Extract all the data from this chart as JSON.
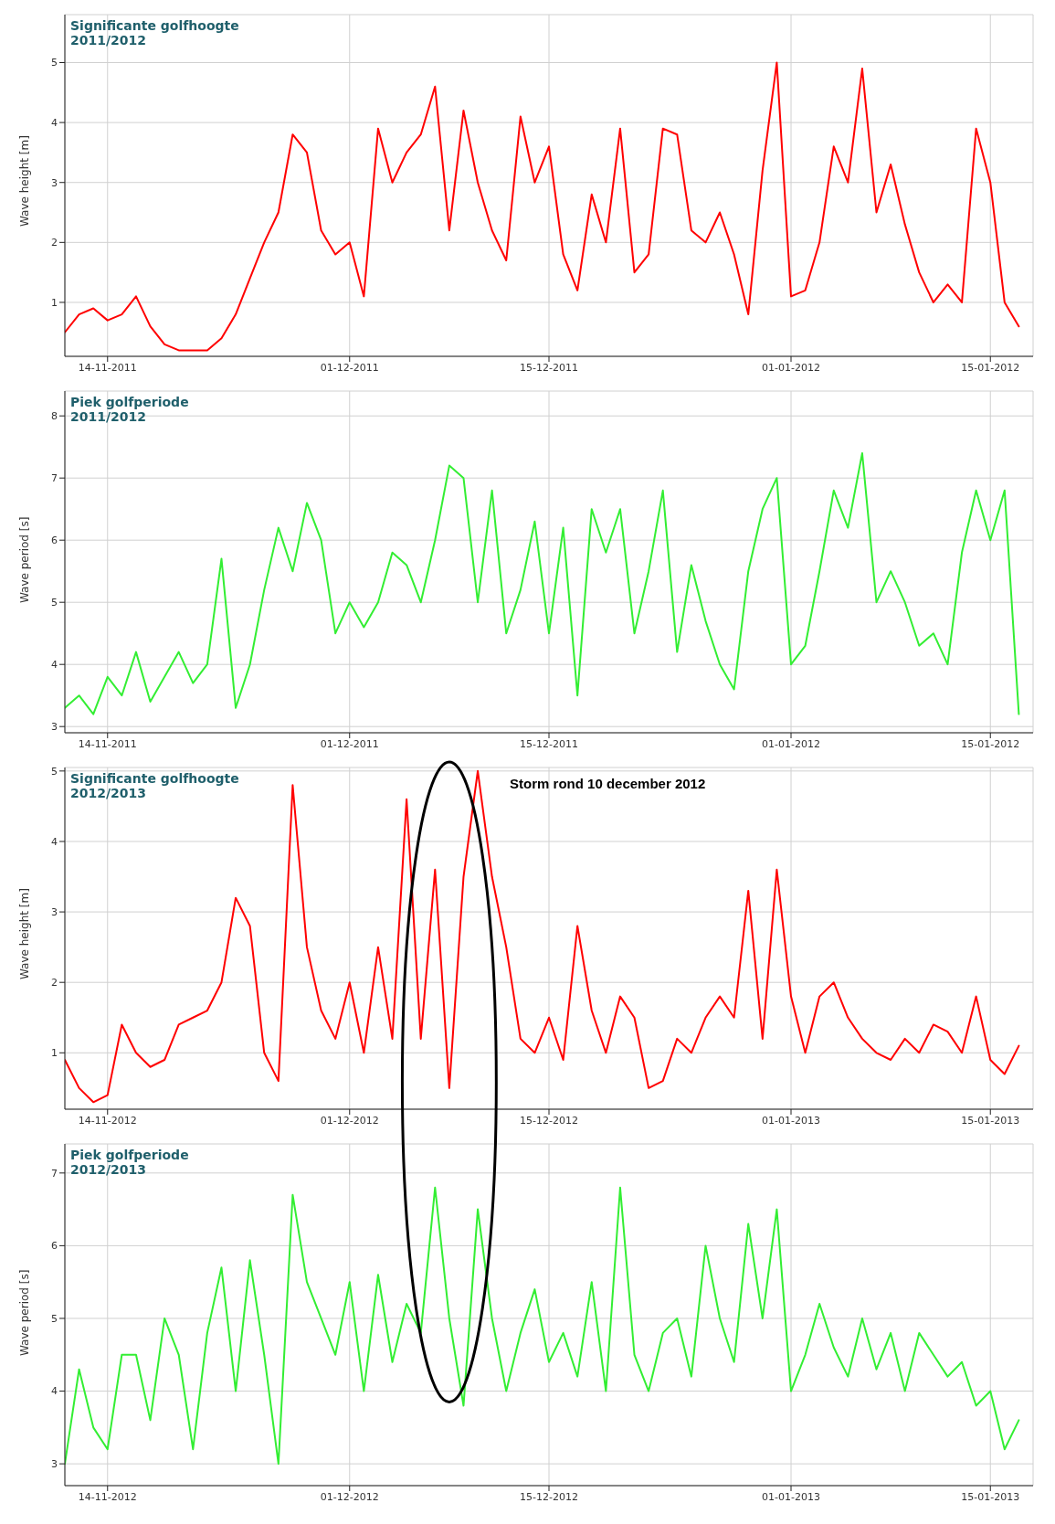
{
  "chart_data": [
    {
      "type": "line",
      "title": "Significante golfhoogte",
      "subtitle": "2011/2012",
      "ylabel": "Wave height [m]",
      "color": "#ff0000",
      "marker": "none",
      "line_style": "solid",
      "grid": true,
      "xlim": [
        "2011-11-11",
        "2012-01-18"
      ],
      "xticks": [
        {
          "value": "2011-11-14",
          "label": "14-11-2011"
        },
        {
          "value": "2011-12-01",
          "label": "01-12-2011"
        },
        {
          "value": "2011-12-15",
          "label": "15-12-2011"
        },
        {
          "value": "2012-01-01",
          "label": "01-01-2012"
        },
        {
          "value": "2012-01-15",
          "label": "15-01-2012"
        }
      ],
      "ylim": [
        0.1,
        5.8
      ],
      "yticks": [
        1,
        2,
        3,
        4,
        5
      ],
      "x": [
        "2011-11-11",
        "2011-11-12",
        "2011-11-13",
        "2011-11-14",
        "2011-11-15",
        "2011-11-16",
        "2011-11-17",
        "2011-11-18",
        "2011-11-19",
        "2011-11-20",
        "2011-11-21",
        "2011-11-22",
        "2011-11-23",
        "2011-11-24",
        "2011-11-25",
        "2011-11-26",
        "2011-11-27",
        "2011-11-28",
        "2011-11-29",
        "2011-11-30",
        "2011-12-01",
        "2011-12-02",
        "2011-12-03",
        "2011-12-04",
        "2011-12-05",
        "2011-12-06",
        "2011-12-07",
        "2011-12-08",
        "2011-12-09",
        "2011-12-10",
        "2011-12-11",
        "2011-12-12",
        "2011-12-13",
        "2011-12-14",
        "2011-12-15",
        "2011-12-16",
        "2011-12-17",
        "2011-12-18",
        "2011-12-19",
        "2011-12-20",
        "2011-12-21",
        "2011-12-22",
        "2011-12-23",
        "2011-12-24",
        "2011-12-25",
        "2011-12-26",
        "2011-12-27",
        "2011-12-28",
        "2011-12-29",
        "2011-12-30",
        "2011-12-31",
        "2012-01-01",
        "2012-01-02",
        "2012-01-03",
        "2012-01-04",
        "2012-01-05",
        "2012-01-06",
        "2012-01-07",
        "2012-01-08",
        "2012-01-09",
        "2012-01-10",
        "2012-01-11",
        "2012-01-12",
        "2012-01-13",
        "2012-01-14",
        "2012-01-15",
        "2012-01-16",
        "2012-01-17"
      ],
      "values": [
        0.5,
        0.8,
        0.9,
        0.7,
        0.8,
        1.1,
        0.6,
        0.3,
        0.2,
        0.2,
        0.2,
        0.4,
        0.8,
        1.4,
        2.0,
        2.5,
        3.8,
        3.5,
        2.2,
        1.8,
        2.0,
        1.1,
        3.9,
        3.0,
        3.5,
        3.8,
        4.6,
        2.2,
        4.2,
        3.0,
        2.2,
        1.7,
        4.1,
        3.0,
        3.6,
        1.8,
        1.2,
        2.8,
        2.0,
        3.9,
        1.5,
        1.8,
        3.9,
        3.8,
        2.2,
        2.0,
        2.5,
        1.8,
        0.8,
        3.2,
        5.0,
        1.1,
        1.2,
        2.0,
        3.6,
        3.0,
        4.9,
        2.5,
        3.3,
        2.3,
        1.5,
        1.0,
        1.3,
        1.0,
        3.9,
        3.0,
        1.0,
        0.6
      ]
    },
    {
      "type": "line",
      "title": "Piek golfperiode",
      "subtitle": "2011/2012",
      "ylabel": "Wave period [s]",
      "color": "#33ee33",
      "marker": "none",
      "line_style": "solid",
      "grid": true,
      "xlim": [
        "2011-11-11",
        "2012-01-18"
      ],
      "xticks": [
        {
          "value": "2011-11-14",
          "label": "14-11-2011"
        },
        {
          "value": "2011-12-01",
          "label": "01-12-2011"
        },
        {
          "value": "2011-12-15",
          "label": "15-12-2011"
        },
        {
          "value": "2012-01-01",
          "label": "01-01-2012"
        },
        {
          "value": "2012-01-15",
          "label": "15-01-2012"
        }
      ],
      "ylim": [
        2.9,
        8.4
      ],
      "yticks": [
        3,
        4,
        5,
        6,
        7,
        8
      ],
      "x": [
        "2011-11-11",
        "2011-11-12",
        "2011-11-13",
        "2011-11-14",
        "2011-11-15",
        "2011-11-16",
        "2011-11-17",
        "2011-11-18",
        "2011-11-19",
        "2011-11-20",
        "2011-11-21",
        "2011-11-22",
        "2011-11-23",
        "2011-11-24",
        "2011-11-25",
        "2011-11-26",
        "2011-11-27",
        "2011-11-28",
        "2011-11-29",
        "2011-11-30",
        "2011-12-01",
        "2011-12-02",
        "2011-12-03",
        "2011-12-04",
        "2011-12-05",
        "2011-12-06",
        "2011-12-07",
        "2011-12-08",
        "2011-12-09",
        "2011-12-10",
        "2011-12-11",
        "2011-12-12",
        "2011-12-13",
        "2011-12-14",
        "2011-12-15",
        "2011-12-16",
        "2011-12-17",
        "2011-12-18",
        "2011-12-19",
        "2011-12-20",
        "2011-12-21",
        "2011-12-22",
        "2011-12-23",
        "2011-12-24",
        "2011-12-25",
        "2011-12-26",
        "2011-12-27",
        "2011-12-28",
        "2011-12-29",
        "2011-12-30",
        "2011-12-31",
        "2012-01-01",
        "2012-01-02",
        "2012-01-03",
        "2012-01-04",
        "2012-01-05",
        "2012-01-06",
        "2012-01-07",
        "2012-01-08",
        "2012-01-09",
        "2012-01-10",
        "2012-01-11",
        "2012-01-12",
        "2012-01-13",
        "2012-01-14",
        "2012-01-15",
        "2012-01-16",
        "2012-01-17"
      ],
      "values": [
        3.3,
        3.5,
        3.2,
        3.8,
        3.5,
        4.2,
        3.4,
        3.8,
        4.2,
        3.7,
        4.0,
        5.7,
        3.3,
        4.0,
        5.2,
        6.2,
        5.5,
        6.6,
        6.0,
        4.5,
        5.0,
        4.6,
        5.0,
        5.8,
        5.6,
        5.0,
        6.0,
        7.2,
        7.0,
        5.0,
        6.8,
        4.5,
        5.2,
        6.3,
        4.5,
        6.2,
        3.5,
        6.5,
        5.8,
        6.5,
        4.5,
        5.5,
        6.8,
        4.2,
        5.6,
        4.7,
        4.0,
        3.6,
        5.5,
        6.5,
        7.0,
        4.0,
        4.3,
        5.5,
        6.8,
        6.2,
        7.4,
        5.0,
        5.5,
        5.0,
        4.3,
        4.5,
        4.0,
        5.8,
        6.8,
        6.0,
        6.8,
        3.2
      ]
    },
    {
      "type": "line",
      "title": "Significante golfhoogte",
      "subtitle": "2012/2013",
      "ylabel": "Wave height [m]",
      "color": "#ff0000",
      "marker": "none",
      "line_style": "solid",
      "grid": true,
      "xlim": [
        "2012-11-11",
        "2013-01-18"
      ],
      "xticks": [
        {
          "value": "2012-11-14",
          "label": "14-11-2012"
        },
        {
          "value": "2012-12-01",
          "label": "01-12-2012"
        },
        {
          "value": "2012-12-15",
          "label": "15-12-2012"
        },
        {
          "value": "2013-01-01",
          "label": "01-01-2013"
        },
        {
          "value": "2013-01-15",
          "label": "15-01-2013"
        }
      ],
      "ylim": [
        0.2,
        5.05
      ],
      "yticks": [
        1,
        2,
        3,
        4,
        5
      ],
      "annotations": [
        {
          "text": "Storm rond 10 december 2012",
          "x": "2012-12-10",
          "y": 5.0
        }
      ],
      "x": [
        "2012-11-11",
        "2012-11-12",
        "2012-11-13",
        "2012-11-14",
        "2012-11-15",
        "2012-11-16",
        "2012-11-17",
        "2012-11-18",
        "2012-11-19",
        "2012-11-20",
        "2012-11-21",
        "2012-11-22",
        "2012-11-23",
        "2012-11-24",
        "2012-11-25",
        "2012-11-26",
        "2012-11-27",
        "2012-11-28",
        "2012-11-29",
        "2012-11-30",
        "2012-12-01",
        "2012-12-02",
        "2012-12-03",
        "2012-12-04",
        "2012-12-05",
        "2012-12-06",
        "2012-12-07",
        "2012-12-08",
        "2012-12-09",
        "2012-12-10",
        "2012-12-11",
        "2012-12-12",
        "2012-12-13",
        "2012-12-14",
        "2012-12-15",
        "2012-12-16",
        "2012-12-17",
        "2012-12-18",
        "2012-12-19",
        "2012-12-20",
        "2012-12-21",
        "2012-12-22",
        "2012-12-23",
        "2012-12-24",
        "2012-12-25",
        "2012-12-26",
        "2012-12-27",
        "2012-12-28",
        "2012-12-29",
        "2012-12-30",
        "2012-12-31",
        "2013-01-01",
        "2013-01-02",
        "2013-01-03",
        "2013-01-04",
        "2013-01-05",
        "2013-01-06",
        "2013-01-07",
        "2013-01-08",
        "2013-01-09",
        "2013-01-10",
        "2013-01-11",
        "2013-01-12",
        "2013-01-13",
        "2013-01-14",
        "2013-01-15",
        "2013-01-16",
        "2013-01-17"
      ],
      "values": [
        0.9,
        0.5,
        0.3,
        0.4,
        1.4,
        1.0,
        0.8,
        0.9,
        1.4,
        1.5,
        1.6,
        2.0,
        3.2,
        2.8,
        1.0,
        0.6,
        4.8,
        2.5,
        1.6,
        1.2,
        2.0,
        1.0,
        2.5,
        1.2,
        4.6,
        1.2,
        3.6,
        0.5,
        3.5,
        5.0,
        3.5,
        2.5,
        1.2,
        1.0,
        1.5,
        0.9,
        2.8,
        1.6,
        1.0,
        1.8,
        1.5,
        0.5,
        0.6,
        1.2,
        1.0,
        1.5,
        1.8,
        1.5,
        3.3,
        1.2,
        3.6,
        1.8,
        1.0,
        1.8,
        2.0,
        1.5,
        1.2,
        1.0,
        0.9,
        1.2,
        1.0,
        1.4,
        1.3,
        1.0,
        1.8,
        0.9,
        0.7,
        1.1
      ]
    },
    {
      "type": "line",
      "title": "Piek golfperiode",
      "subtitle": "2012/2013",
      "ylabel": "Wave period [s]",
      "color": "#33ee33",
      "marker": "none",
      "line_style": "solid",
      "grid": true,
      "xlim": [
        "2012-11-11",
        "2013-01-18"
      ],
      "xticks": [
        {
          "value": "2012-11-14",
          "label": "14-11-2012"
        },
        {
          "value": "2012-12-01",
          "label": "01-12-2012"
        },
        {
          "value": "2012-12-15",
          "label": "15-12-2012"
        },
        {
          "value": "2013-01-01",
          "label": "01-01-2013"
        },
        {
          "value": "2013-01-15",
          "label": "15-01-2013"
        }
      ],
      "ylim": [
        2.7,
        7.4
      ],
      "yticks": [
        3,
        4,
        5,
        6,
        7
      ],
      "x": [
        "2012-11-11",
        "2012-11-12",
        "2012-11-13",
        "2012-11-14",
        "2012-11-15",
        "2012-11-16",
        "2012-11-17",
        "2012-11-18",
        "2012-11-19",
        "2012-11-20",
        "2012-11-21",
        "2012-11-22",
        "2012-11-23",
        "2012-11-24",
        "2012-11-25",
        "2012-11-26",
        "2012-11-27",
        "2012-11-28",
        "2012-11-29",
        "2012-11-30",
        "2012-12-01",
        "2012-12-02",
        "2012-12-03",
        "2012-12-04",
        "2012-12-05",
        "2012-12-06",
        "2012-12-07",
        "2012-12-08",
        "2012-12-09",
        "2012-12-10",
        "2012-12-11",
        "2012-12-12",
        "2012-12-13",
        "2012-12-14",
        "2012-12-15",
        "2012-12-16",
        "2012-12-17",
        "2012-12-18",
        "2012-12-19",
        "2012-12-20",
        "2012-12-21",
        "2012-12-22",
        "2012-12-23",
        "2012-12-24",
        "2012-12-25",
        "2012-12-26",
        "2012-12-27",
        "2012-12-28",
        "2012-12-29",
        "2012-12-30",
        "2012-12-31",
        "2013-01-01",
        "2013-01-02",
        "2013-01-03",
        "2013-01-04",
        "2013-01-05",
        "2013-01-06",
        "2013-01-07",
        "2013-01-08",
        "2013-01-09",
        "2013-01-10",
        "2013-01-11",
        "2013-01-12",
        "2013-01-13",
        "2013-01-14",
        "2013-01-15",
        "2013-01-16",
        "2013-01-17"
      ],
      "values": [
        3.0,
        4.3,
        3.5,
        3.2,
        4.5,
        4.5,
        3.6,
        5.0,
        4.5,
        3.2,
        4.8,
        5.7,
        4.0,
        5.8,
        4.5,
        3.0,
        6.7,
        5.5,
        5.0,
        4.5,
        5.5,
        4.0,
        5.6,
        4.4,
        5.2,
        4.8,
        6.8,
        5.0,
        3.8,
        6.5,
        5.0,
        4.0,
        4.8,
        5.4,
        4.4,
        4.8,
        4.2,
        5.5,
        4.0,
        6.8,
        4.5,
        4.0,
        4.8,
        5.0,
        4.2,
        6.0,
        5.0,
        4.4,
        6.3,
        5.0,
        6.5,
        4.0,
        4.5,
        5.2,
        4.6,
        4.2,
        5.0,
        4.3,
        4.8,
        4.0,
        4.8,
        4.5,
        4.2,
        4.4,
        3.8,
        4.0,
        3.2,
        3.6
      ]
    }
  ]
}
